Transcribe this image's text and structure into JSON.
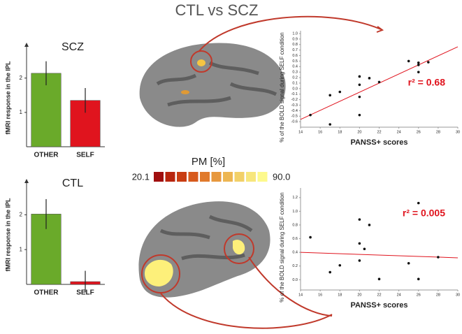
{
  "title": "CTL vs SCZ",
  "colorbar": {
    "label": "PM [%]",
    "min": 20.1,
    "max": {
      "value": 90,
      "label": "90.0"
    },
    "colors": [
      "#a00f0f",
      "#b8250e",
      "#c93d12",
      "#d75a1c",
      "#e07a2c",
      "#e7983e",
      "#edb652",
      "#f2d068",
      "#f7e67c",
      "#fdf98c"
    ]
  },
  "chart_data": [
    {
      "type": "bar",
      "title": "SCZ",
      "y_label": "fMRI response in the IPL",
      "categories": [
        "OTHER",
        "SELF"
      ],
      "values": [
        2.14,
        1.35
      ],
      "errors": [
        0.35,
        0.36
      ],
      "colors": [
        "#6aaa2a",
        "#e0141e"
      ],
      "ylim": [
        0,
        2.85
      ],
      "yticks": [
        1,
        2
      ]
    },
    {
      "type": "bar",
      "title": "CTL",
      "y_label": "fMRI response in the IPL",
      "categories": [
        "OTHER",
        "SELF"
      ],
      "values": [
        2.02,
        0.08
      ],
      "errors": [
        0.43,
        0.31
      ],
      "colors": [
        "#6aaa2a",
        "#e0141e"
      ],
      "ylim": [
        0,
        2.85
      ],
      "yticks": [
        1,
        2
      ]
    },
    {
      "type": "scatter",
      "x_label": "PANSS+ scores",
      "y_label": "% of the BOLD signal during SELF condition",
      "annotation": "r² = 0.68",
      "x": [
        15,
        17,
        17,
        18,
        20,
        20,
        20,
        20,
        21,
        22,
        25,
        26,
        26,
        26,
        27
      ],
      "y": [
        -0.48,
        -0.65,
        -0.12,
        -0.06,
        0.22,
        0.07,
        -0.15,
        -0.48,
        0.19,
        0.12,
        0.5,
        0.47,
        0.43,
        0.3,
        0.48
      ],
      "color": "#111",
      "fit": {
        "x": [
          14,
          30
        ],
        "y": [
          -0.56,
          0.76
        ],
        "color": "#e0141e"
      },
      "xlim": [
        14,
        30
      ],
      "xticks": [
        14,
        16,
        18,
        20,
        22,
        24,
        26,
        28,
        30
      ],
      "ylim": [
        -0.7,
        1.0
      ],
      "yticks": [
        {
          "value": -0.6,
          "label": "-0.6"
        },
        {
          "value": -0.5,
          "label": "-0.5"
        },
        {
          "value": -0.4,
          "label": "-0.4"
        },
        {
          "value": -0.3,
          "label": "-0.3"
        },
        {
          "value": -0.2,
          "label": "-0.2"
        },
        {
          "value": -0.1,
          "label": "-0.1"
        },
        {
          "value": 0,
          "label": "0.0"
        },
        {
          "value": 0.1,
          "label": "0.1"
        },
        {
          "value": 0.2,
          "label": "0.2"
        },
        {
          "value": 0.3,
          "label": "0.3"
        },
        {
          "value": 0.4,
          "label": "0.4"
        },
        {
          "value": 0.5,
          "label": "0.5"
        },
        {
          "value": 0.6,
          "label": "0.6"
        },
        {
          "value": 0.7,
          "label": "0.7"
        },
        {
          "value": 0.8,
          "label": "0.8"
        },
        {
          "value": 0.9,
          "label": "0.9"
        },
        {
          "value": 1,
          "label": "1.0"
        }
      ]
    },
    {
      "type": "scatter",
      "x_label": "PANSS+ scores",
      "y_label": "% of the BOLD signal during SELF condition",
      "annotation": "r² = 0.005",
      "x": [
        15,
        17,
        18,
        20,
        20,
        20,
        20.5,
        21,
        22,
        25,
        26,
        26,
        28
      ],
      "y": [
        0.62,
        0.11,
        0.21,
        0.88,
        0.53,
        0.28,
        0.45,
        0.8,
        0.01,
        0.24,
        1.12,
        0.01,
        0.33
      ],
      "color": "#111",
      "fit": {
        "x": [
          14,
          30
        ],
        "y": [
          0.4,
          0.32
        ],
        "color": "#e0141e"
      },
      "xlim": [
        14,
        30
      ],
      "xticks": [
        14,
        16,
        18,
        20,
        22,
        24,
        26,
        28,
        30
      ],
      "ylim": [
        -0.15,
        1.3
      ],
      "yticks": [
        {
          "value": 0,
          "label": "0.0"
        },
        {
          "value": 0.2,
          "label": "0.2"
        },
        {
          "value": 0.4,
          "label": "0.4"
        },
        {
          "value": 0.6,
          "label": "0.6"
        },
        {
          "value": 0.8,
          "label": "0.8"
        },
        {
          "value": 1,
          "label": "1.0"
        },
        {
          "value": 1.2,
          "label": "1.2"
        }
      ]
    }
  ]
}
